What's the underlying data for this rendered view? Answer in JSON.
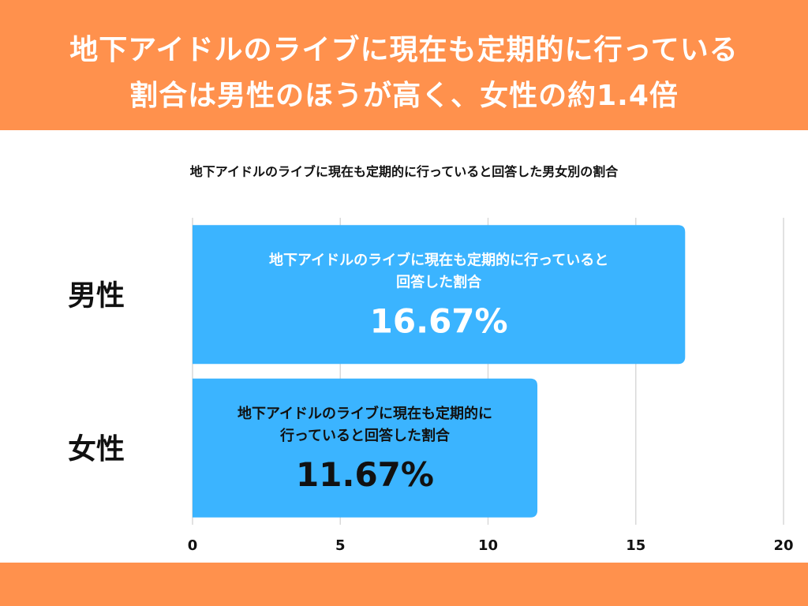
{
  "header": {
    "line1": "地下アイドルのライブに現在も定期的に行っている",
    "line2": "割合は男性のほうが高く、女性の約1.4倍"
  },
  "colors": {
    "header_bg": "#FF914D",
    "bar_fill": "#3BB4FF",
    "grid": "#d9d9d9",
    "male_label_text": "#ffffff",
    "female_label_text": "#111111"
  },
  "chart_data": {
    "type": "bar",
    "orientation": "horizontal",
    "title": "地下アイドルのライブに現在も定期的に行っていると回答した男女別の割合",
    "categories": [
      "男性",
      "女性"
    ],
    "values": [
      16.67,
      11.67
    ],
    "value_labels": [
      "16.67%",
      "11.67%"
    ],
    "bar_captions": [
      [
        "地下アイドルのライブに現在も定期的に行っていると",
        "回答した割合"
      ],
      [
        "地下アイドルのライブに現在も定期的に",
        "行っていると回答した割合"
      ]
    ],
    "xlim": [
      0,
      20
    ],
    "xticks": [
      0,
      5,
      10,
      15,
      20
    ],
    "xtick_labels": [
      "0",
      "5",
      "10",
      "15",
      "20"
    ],
    "grid": true,
    "legend": "none"
  }
}
